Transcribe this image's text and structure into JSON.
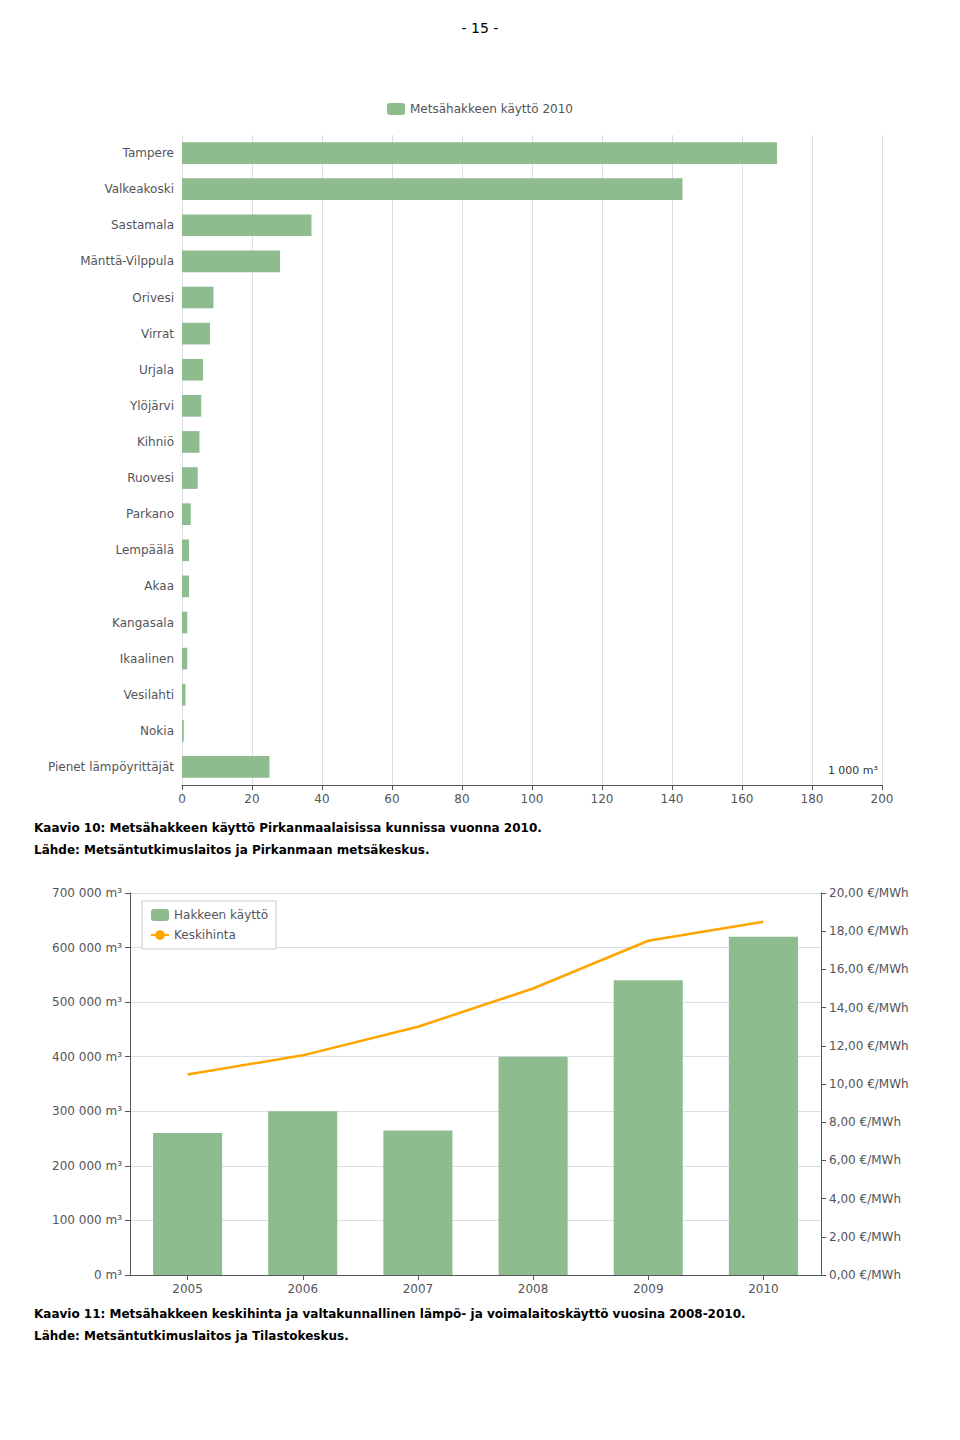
{
  "title": "- 15 -",
  "chart_data": [
    {
      "type": "bar",
      "orientation": "horizontal",
      "categories": [
        "Tampere",
        "Valkeakoski",
        "Sastamala",
        "Mänttä-Vilppula",
        "Orivesi",
        "Virrat",
        "Urjala",
        "Ylöjärvi",
        "Kihniö",
        "Ruovesi",
        "Parkano",
        "Lempäälä",
        "Akaa",
        "Kangasala",
        "Ikaalinen",
        "Vesilahti",
        "Nokia",
        "Pienet lämpöyrittäjät"
      ],
      "series": [
        {
          "name": "Metsähakkeen käyttö 2010",
          "color": "#8FBC8F",
          "values": [
            170,
            143,
            37,
            28,
            9,
            8,
            6,
            5.5,
            5,
            4.5,
            2.5,
            2,
            2,
            1.5,
            1.5,
            1,
            0.5,
            25
          ]
        }
      ],
      "xlabel": "1 000 m³",
      "xlim": [
        0,
        200
      ],
      "xticks": [
        0,
        20,
        40,
        60,
        80,
        100,
        120,
        140,
        160,
        180,
        200
      ],
      "grid": true,
      "legend": "top",
      "annotations": [
        "Kaavio 10: Metsähakkeen käyttö Pirkanmaalaisissa kunnissa vuonna 2010.",
        "Lähde: Metsäntutkimuslaitos ja Pirkanmaan metsäkeskus."
      ]
    },
    {
      "type": "bar",
      "categories": [
        "2005",
        "2006",
        "2007",
        "2008",
        "2009",
        "2010"
      ],
      "series": [
        {
          "name": "Hakkeen käyttö",
          "type": "bar",
          "color": "#8FBC8F",
          "values": [
            260000,
            300000,
            265000,
            400000,
            540000,
            620000
          ]
        },
        {
          "name": "Keskihinta",
          "type": "line",
          "color": "#FFA500",
          "axis": "y2",
          "values": [
            10.5,
            11.5,
            13.0,
            15.0,
            17.5,
            18.5
          ]
        }
      ],
      "ylim": [
        0,
        700000
      ],
      "yticks": [
        {
          "value": 0,
          "label": "0 m³"
        },
        {
          "value": 100000,
          "label": "100 000 m³"
        },
        {
          "value": 200000,
          "label": "200 000 m³"
        },
        {
          "value": 300000,
          "label": "300 000 m³"
        },
        {
          "value": 400000,
          "label": "400 000 m³"
        },
        {
          "value": 500000,
          "label": "500 000 m³"
        },
        {
          "value": 600000,
          "label": "600 000 m³"
        },
        {
          "value": 700000,
          "label": "700 000 m³"
        }
      ],
      "y2lim": [
        0,
        20
      ],
      "y2ticks": [
        {
          "value": 0,
          "label": "0,00 €/MWh"
        },
        {
          "value": 2,
          "label": "2,00 €/MWh"
        },
        {
          "value": 4,
          "label": "4,00 €/MWh"
        },
        {
          "value": 6,
          "label": "6,00 €/MWh"
        },
        {
          "value": 8,
          "label": "8,00 €/MWh"
        },
        {
          "value": 10,
          "label": "10,00 €/MWh"
        },
        {
          "value": 12,
          "label": "12,00 €/MWh"
        },
        {
          "value": 14,
          "label": "14,00 €/MWh"
        },
        {
          "value": 16,
          "label": "16,00 €/MWh"
        },
        {
          "value": 18,
          "label": "18,00 €/MWh"
        },
        {
          "value": 20,
          "label": "20,00 €/MWh"
        }
      ],
      "grid": true,
      "legend": "upper left",
      "annotations": [
        "Kaavio 11: Metsähakkeen keskihinta ja valtakunnallinen lämpö- ja voimalaitoskäyttö vuosina 2008-2010.",
        "Lähde: Metsäntutkimuslaitos ja Tilastokeskus."
      ]
    }
  ]
}
